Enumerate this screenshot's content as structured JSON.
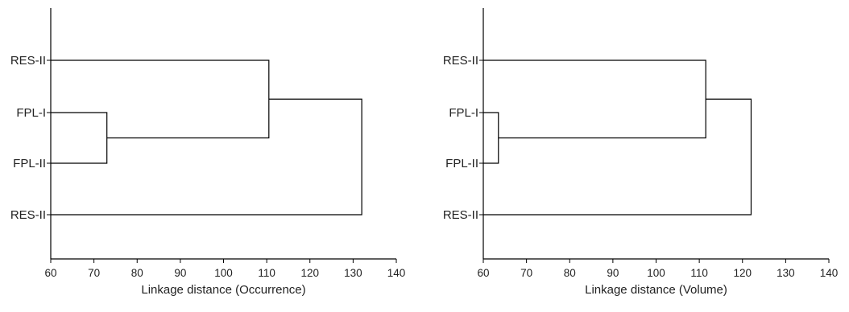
{
  "chart_data": [
    {
      "type": "dendrogram",
      "xlabel": "Linkage distance (Occurrence)",
      "xlim": [
        60,
        140
      ],
      "xticks": [
        60,
        70,
        80,
        90,
        100,
        110,
        120,
        130,
        140
      ],
      "leaves": [
        "RES-II",
        "FPL-I",
        "FPL-II",
        "RES-II"
      ],
      "merges": [
        {
          "a": 1,
          "b": 2,
          "height": 73
        },
        {
          "a": 0,
          "b": 4,
          "height": 110.5
        },
        {
          "a": 3,
          "b": 5,
          "height": 132
        }
      ]
    },
    {
      "type": "dendrogram",
      "xlabel": "Linkage distance (Volume)",
      "xlim": [
        60,
        140
      ],
      "xticks": [
        60,
        70,
        80,
        90,
        100,
        110,
        120,
        130,
        140
      ],
      "leaves": [
        "RES-II",
        "FPL-I",
        "FPL-II",
        "RES-II"
      ],
      "merges": [
        {
          "a": 1,
          "b": 2,
          "height": 63.5
        },
        {
          "a": 0,
          "b": 4,
          "height": 111.5
        },
        {
          "a": 3,
          "b": 5,
          "height": 122
        }
      ]
    }
  ]
}
